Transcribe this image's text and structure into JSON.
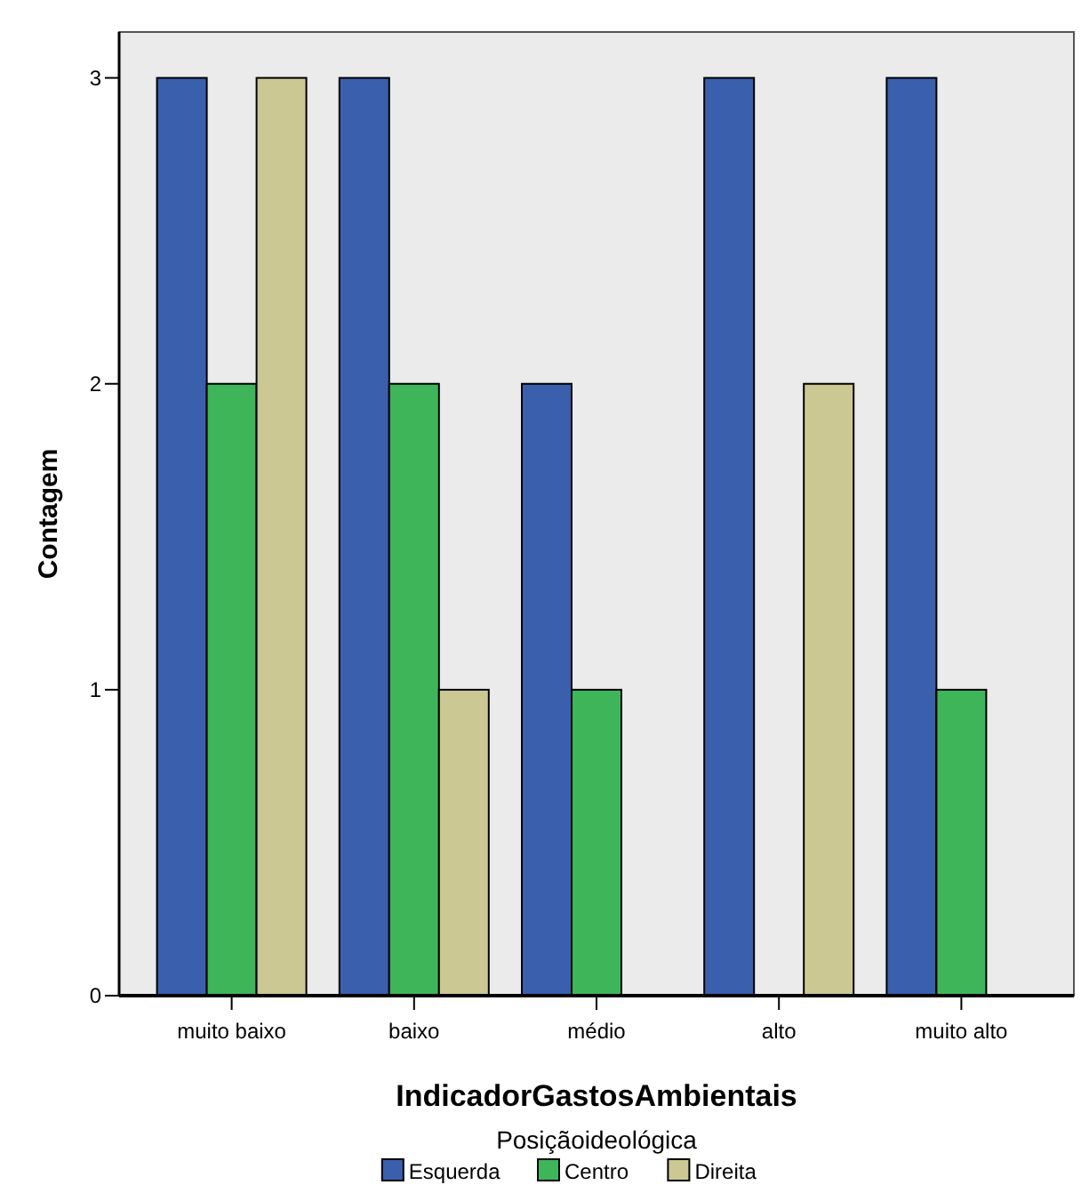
{
  "chart_data": {
    "type": "bar",
    "xlabel": "IndicadorGastosAmbientais",
    "ylabel": "Contagem",
    "legend_title": "Posiçãoideológica",
    "legend": "bottom",
    "grid": false,
    "categories": [
      "muito baixo",
      "baixo",
      "médio",
      "alto",
      "muito alto"
    ],
    "ylim": [
      0,
      3.15
    ],
    "yticks": [
      0,
      1,
      2,
      3
    ],
    "series": [
      {
        "name": "Esquerda",
        "color": "#3a5fad",
        "values": [
          3,
          3,
          2,
          3,
          3
        ]
      },
      {
        "name": "Centro",
        "color": "#3fb55a",
        "values": [
          2,
          2,
          1,
          null,
          1
        ]
      },
      {
        "name": "Direita",
        "color": "#cbc893",
        "values": [
          3,
          1,
          null,
          2,
          null
        ]
      }
    ]
  }
}
